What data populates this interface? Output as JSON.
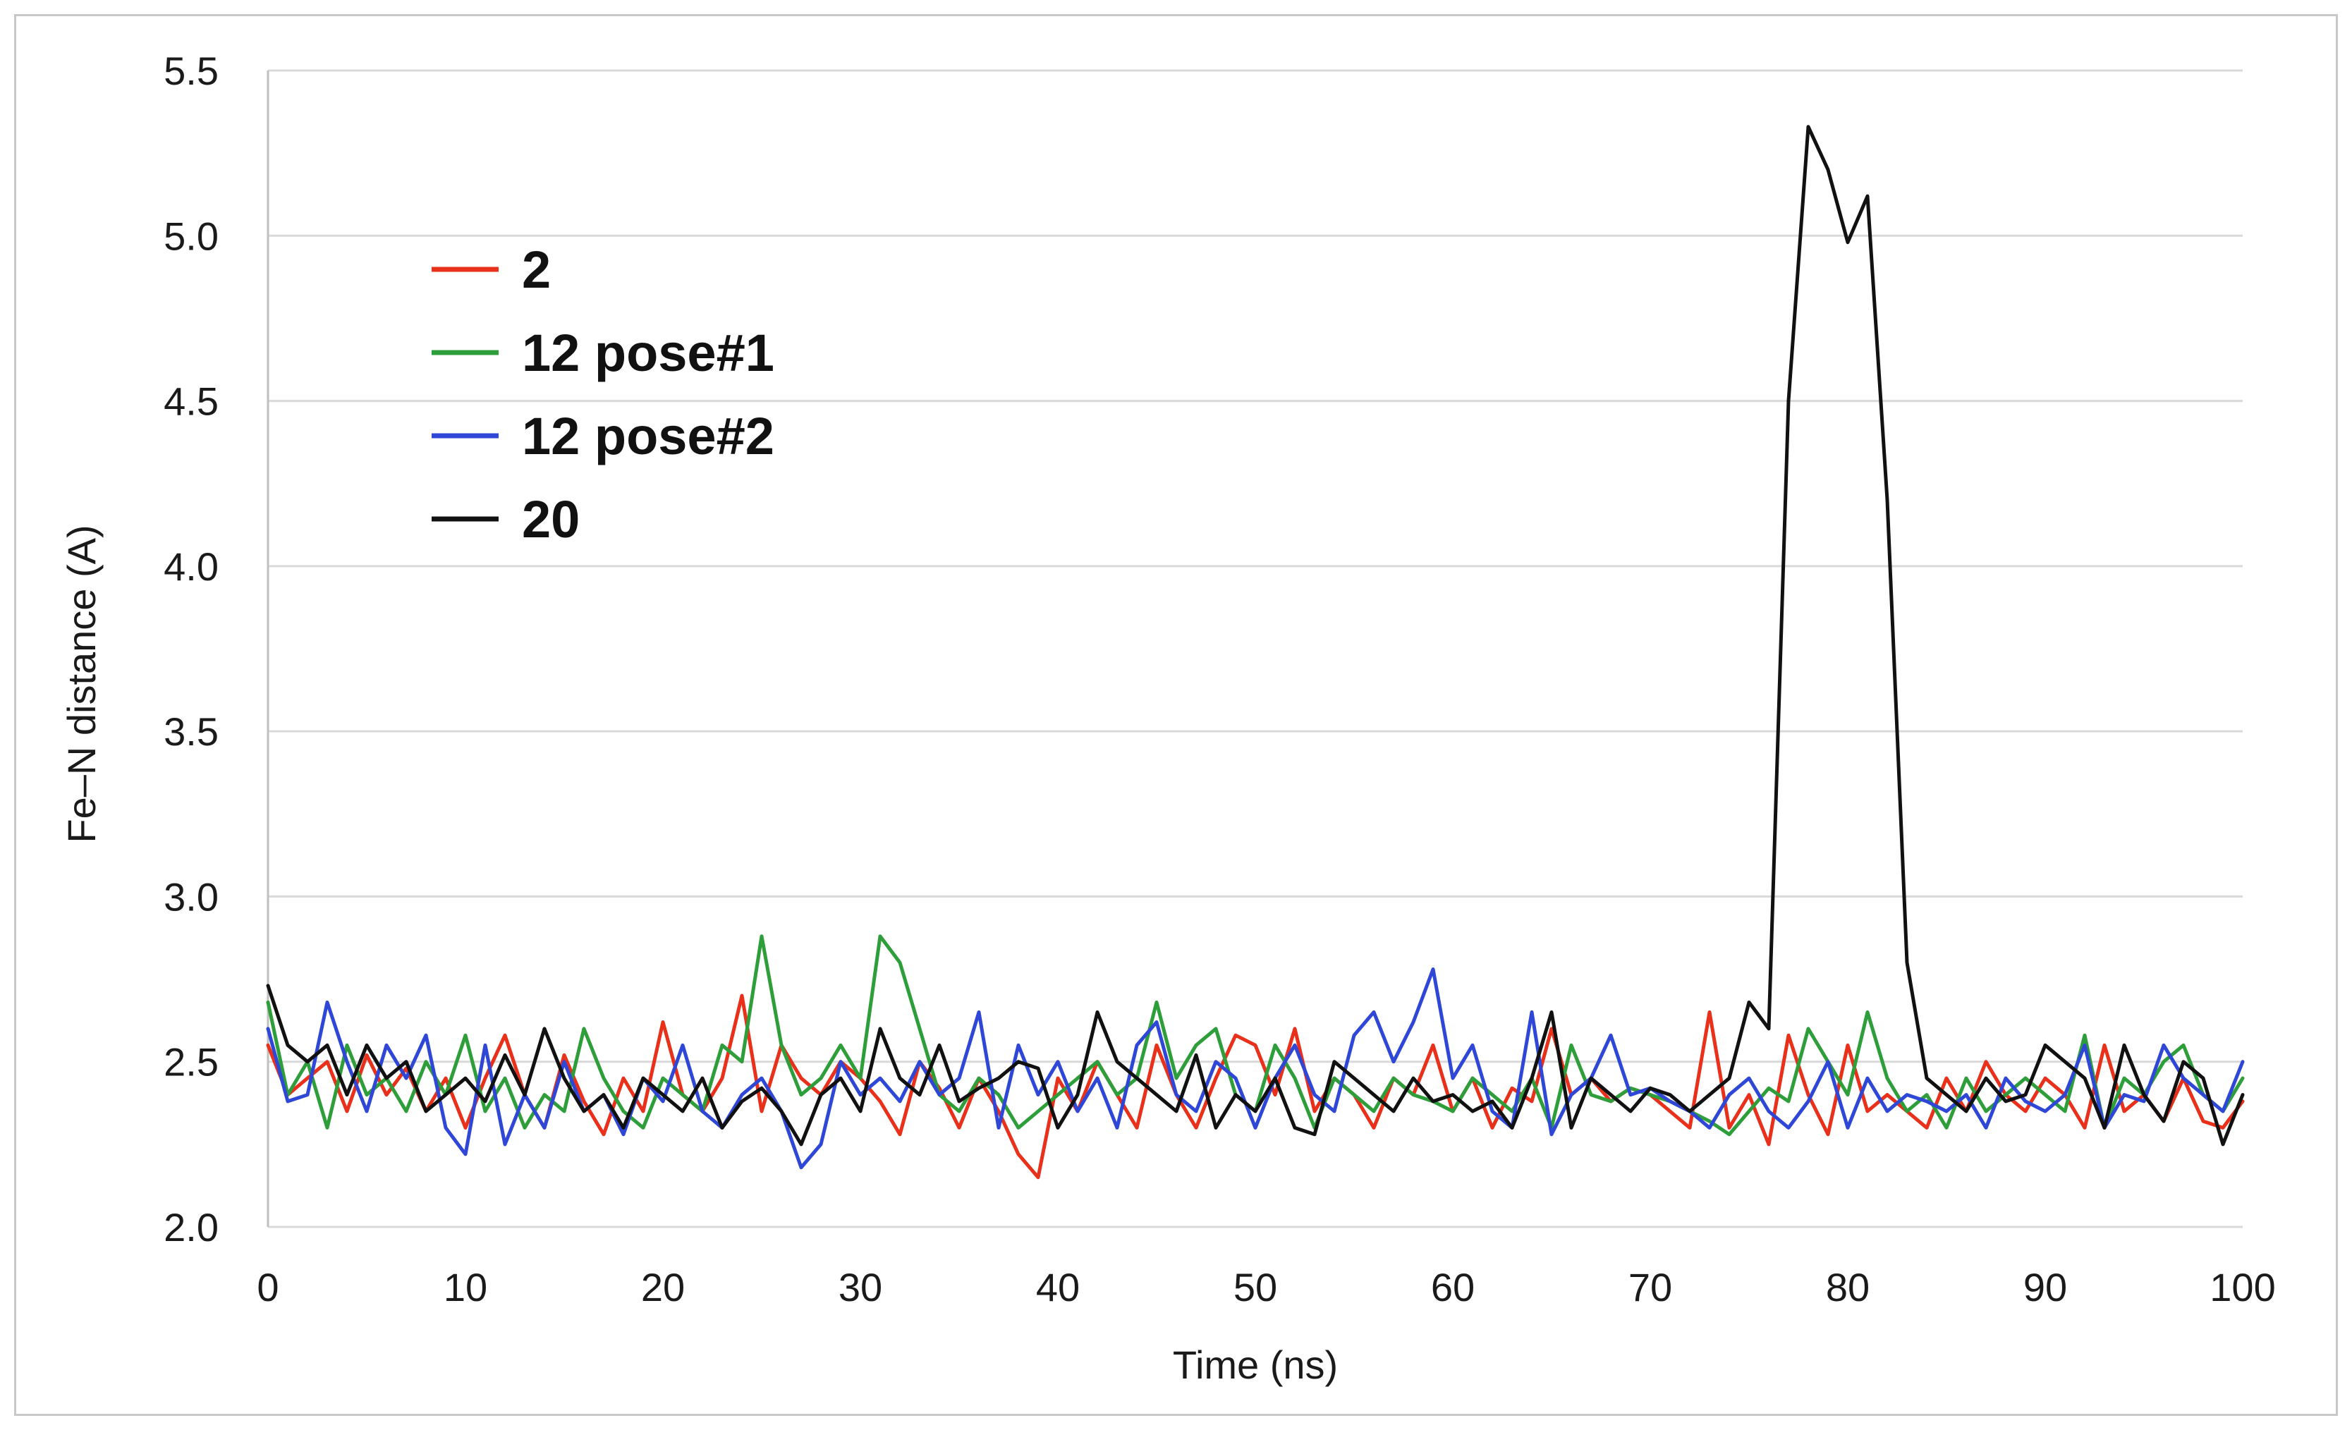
{
  "chart_data": {
    "type": "line",
    "xlabel": "Time (ns)",
    "ylabel": "Fe–N distance (A)",
    "xlim": [
      0,
      100
    ],
    "ylim": [
      2.0,
      5.5
    ],
    "xticks": [
      "0",
      "10",
      "20",
      "30",
      "40",
      "50",
      "60",
      "70",
      "80",
      "90",
      "100"
    ],
    "yticks": [
      "2.0",
      "2.5",
      "3.0",
      "3.5",
      "4.0",
      "4.5",
      "5.0",
      "5.5"
    ],
    "grid": "horizontal",
    "legend_position": "top-left",
    "x": [
      0,
      1,
      2,
      3,
      4,
      5,
      6,
      7,
      8,
      9,
      10,
      11,
      12,
      13,
      14,
      15,
      16,
      17,
      18,
      19,
      20,
      21,
      22,
      23,
      24,
      25,
      26,
      27,
      28,
      29,
      30,
      31,
      32,
      33,
      34,
      35,
      36,
      37,
      38,
      39,
      40,
      41,
      42,
      43,
      44,
      45,
      46,
      47,
      48,
      49,
      50,
      51,
      52,
      53,
      54,
      55,
      56,
      57,
      58,
      59,
      60,
      61,
      62,
      63,
      64,
      65,
      66,
      67,
      68,
      69,
      70,
      71,
      72,
      73,
      74,
      75,
      76,
      77,
      78,
      79,
      80,
      81,
      82,
      83,
      84,
      85,
      86,
      87,
      88,
      89,
      90,
      91,
      92,
      93,
      94,
      95,
      96,
      97,
      98,
      99,
      100
    ],
    "series": [
      {
        "name": "2",
        "color": "#e8301a",
        "values": [
          2.55,
          2.4,
          2.45,
          2.5,
          2.35,
          2.52,
          2.4,
          2.48,
          2.35,
          2.45,
          2.3,
          2.45,
          2.58,
          2.4,
          2.3,
          2.52,
          2.38,
          2.28,
          2.45,
          2.35,
          2.62,
          2.4,
          2.35,
          2.45,
          2.7,
          2.35,
          2.55,
          2.45,
          2.4,
          2.5,
          2.45,
          2.38,
          2.28,
          2.5,
          2.42,
          2.3,
          2.45,
          2.35,
          2.22,
          2.15,
          2.45,
          2.35,
          2.5,
          2.4,
          2.3,
          2.55,
          2.4,
          2.3,
          2.45,
          2.58,
          2.55,
          2.4,
          2.6,
          2.35,
          2.45,
          2.4,
          2.3,
          2.45,
          2.4,
          2.55,
          2.35,
          2.45,
          2.3,
          2.42,
          2.38,
          2.6,
          2.4,
          2.45,
          2.38,
          2.42,
          2.4,
          2.35,
          2.3,
          2.65,
          2.3,
          2.4,
          2.25,
          2.58,
          2.4,
          2.28,
          2.55,
          2.35,
          2.4,
          2.35,
          2.3,
          2.45,
          2.35,
          2.5,
          2.4,
          2.35,
          2.45,
          2.4,
          2.3,
          2.55,
          2.35,
          2.4,
          2.32,
          2.45,
          2.32,
          2.3,
          2.38
        ]
      },
      {
        "name": "12 pose#1",
        "color": "#2e9e3a",
        "values": [
          2.68,
          2.4,
          2.5,
          2.3,
          2.55,
          2.4,
          2.45,
          2.35,
          2.5,
          2.4,
          2.58,
          2.35,
          2.45,
          2.3,
          2.4,
          2.35,
          2.6,
          2.45,
          2.35,
          2.3,
          2.45,
          2.4,
          2.35,
          2.55,
          2.5,
          2.88,
          2.55,
          2.4,
          2.45,
          2.55,
          2.45,
          2.88,
          2.8,
          2.6,
          2.4,
          2.35,
          2.45,
          2.4,
          2.3,
          2.35,
          2.4,
          2.45,
          2.5,
          2.4,
          2.45,
          2.68,
          2.45,
          2.55,
          2.6,
          2.4,
          2.35,
          2.55,
          2.45,
          2.3,
          2.45,
          2.4,
          2.35,
          2.45,
          2.4,
          2.38,
          2.35,
          2.45,
          2.4,
          2.35,
          2.45,
          2.3,
          2.55,
          2.4,
          2.38,
          2.42,
          2.4,
          2.38,
          2.35,
          2.32,
          2.28,
          2.35,
          2.42,
          2.38,
          2.6,
          2.5,
          2.4,
          2.65,
          2.45,
          2.35,
          2.4,
          2.3,
          2.45,
          2.35,
          2.4,
          2.45,
          2.4,
          2.35,
          2.58,
          2.3,
          2.45,
          2.4,
          2.5,
          2.55,
          2.4,
          2.35,
          2.45
        ]
      },
      {
        "name": "12 pose#2",
        "color": "#2f47d6",
        "values": [
          2.6,
          2.38,
          2.4,
          2.68,
          2.5,
          2.35,
          2.55,
          2.45,
          2.58,
          2.3,
          2.22,
          2.55,
          2.25,
          2.4,
          2.3,
          2.5,
          2.35,
          2.4,
          2.28,
          2.45,
          2.38,
          2.55,
          2.35,
          2.3,
          2.4,
          2.45,
          2.35,
          2.18,
          2.25,
          2.5,
          2.4,
          2.45,
          2.38,
          2.5,
          2.4,
          2.45,
          2.65,
          2.3,
          2.55,
          2.4,
          2.5,
          2.35,
          2.45,
          2.3,
          2.55,
          2.62,
          2.4,
          2.35,
          2.5,
          2.45,
          2.3,
          2.45,
          2.55,
          2.4,
          2.35,
          2.58,
          2.65,
          2.5,
          2.62,
          2.78,
          2.45,
          2.55,
          2.35,
          2.3,
          2.65,
          2.28,
          2.4,
          2.45,
          2.58,
          2.4,
          2.42,
          2.38,
          2.35,
          2.3,
          2.4,
          2.45,
          2.35,
          2.3,
          2.38,
          2.5,
          2.3,
          2.45,
          2.35,
          2.4,
          2.38,
          2.35,
          2.4,
          2.3,
          2.45,
          2.38,
          2.35,
          2.4,
          2.55,
          2.3,
          2.4,
          2.38,
          2.55,
          2.45,
          2.4,
          2.35,
          2.5
        ]
      },
      {
        "name": "20",
        "color": "#111111",
        "values": [
          2.73,
          2.55,
          2.5,
          2.55,
          2.4,
          2.55,
          2.45,
          2.5,
          2.35,
          2.4,
          2.45,
          2.38,
          2.52,
          2.4,
          2.6,
          2.45,
          2.35,
          2.4,
          2.3,
          2.45,
          2.4,
          2.35,
          2.45,
          2.3,
          2.38,
          2.42,
          2.35,
          2.25,
          2.4,
          2.45,
          2.35,
          2.6,
          2.45,
          2.4,
          2.55,
          2.38,
          2.42,
          2.45,
          2.5,
          2.48,
          2.3,
          2.4,
          2.65,
          2.5,
          2.45,
          2.4,
          2.35,
          2.52,
          2.3,
          2.4,
          2.35,
          2.45,
          2.3,
          2.28,
          2.5,
          2.45,
          2.4,
          2.35,
          2.45,
          2.38,
          2.4,
          2.35,
          2.38,
          2.3,
          2.45,
          2.65,
          2.3,
          2.45,
          2.4,
          2.35,
          2.42,
          2.4,
          2.35,
          2.4,
          2.45,
          2.68,
          2.6,
          4.5,
          5.33,
          5.2,
          4.98,
          5.12,
          4.2,
          2.8,
          2.45,
          2.4,
          2.35,
          2.45,
          2.38,
          2.4,
          2.55,
          2.5,
          2.45,
          2.3,
          2.55,
          2.4,
          2.32,
          2.5,
          2.45,
          2.25,
          2.4
        ]
      }
    ]
  }
}
